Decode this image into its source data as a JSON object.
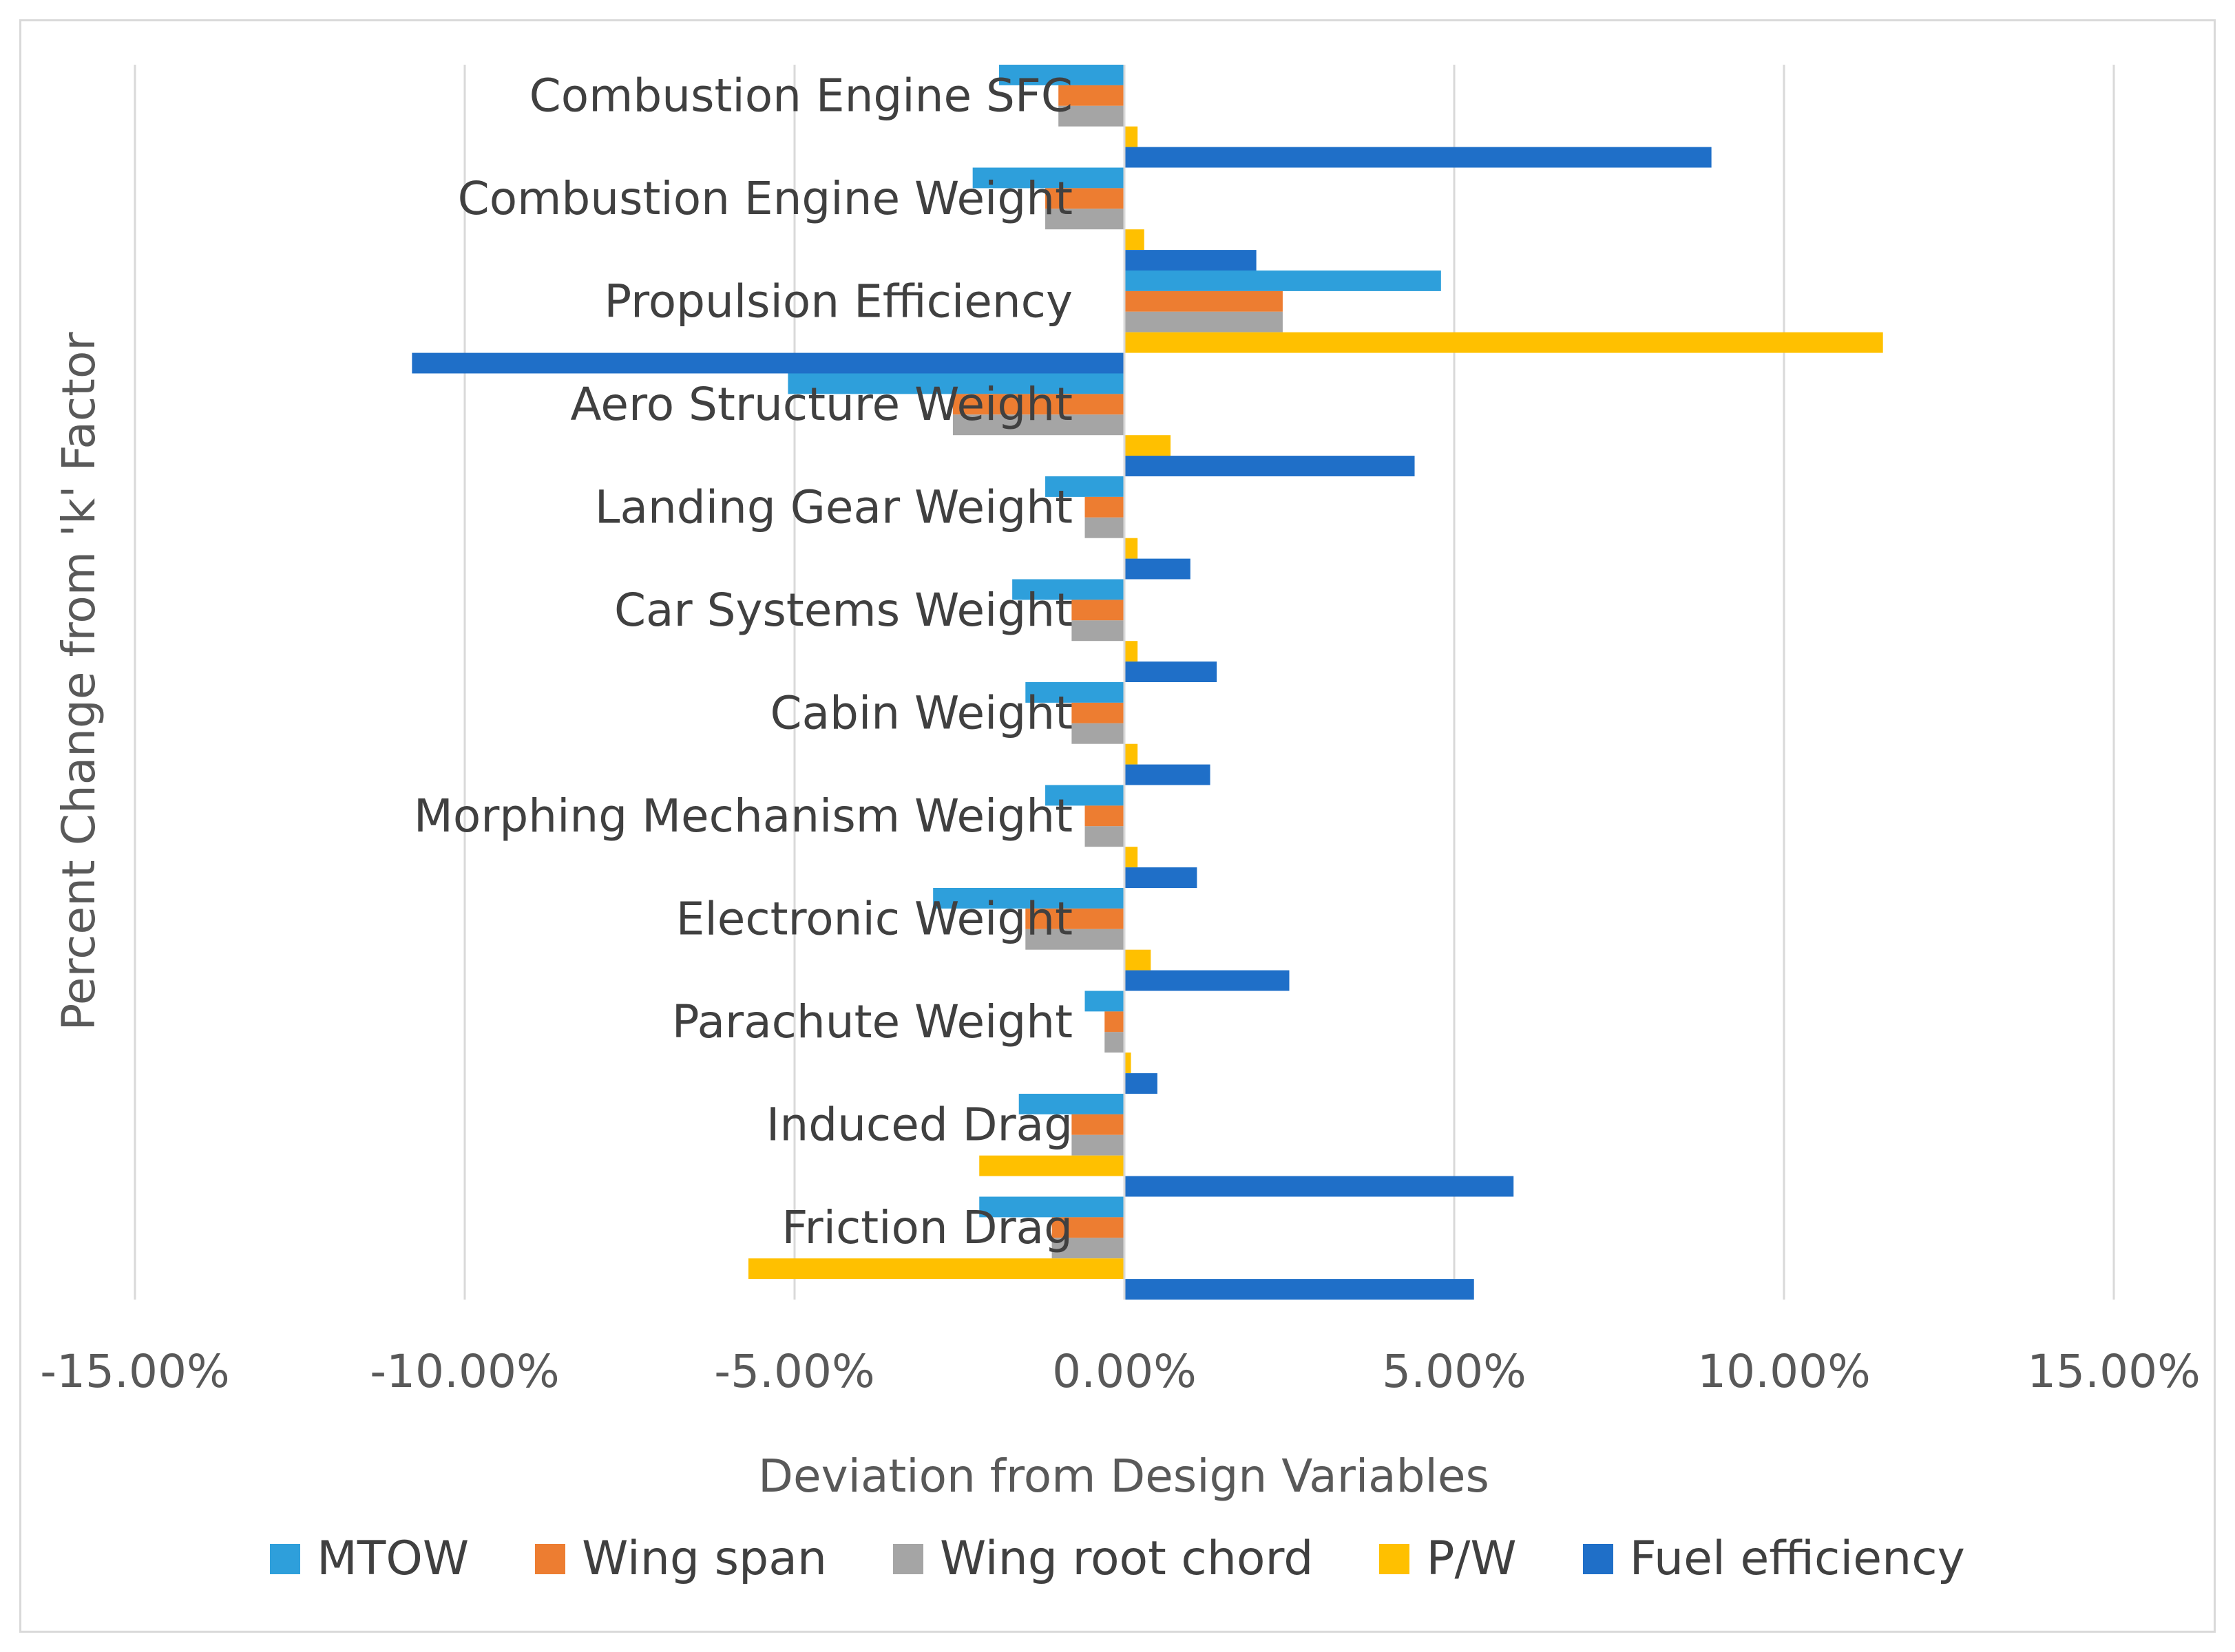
{
  "chart_data": {
    "type": "bar",
    "orientation": "horizontal",
    "title": "",
    "xlabel": "Deviation from Design Variables",
    "ylabel": "Percent Change from 'k' Factor",
    "xlim": [
      -15,
      15
    ],
    "x_ticks": [
      -15,
      -10,
      -5,
      0,
      5,
      10,
      15
    ],
    "x_tick_labels": [
      "-15.00%",
      "-10.00%",
      "-5.00%",
      "0.00%",
      "5.00%",
      "10.00%",
      "15.00%"
    ],
    "grid": "vertical",
    "legend_position": "bottom",
    "categories": [
      "Combustion Engine SFC",
      "Combustion Engine Weight",
      "Propulsion Efficiency",
      "Aero Structure Weight",
      "Landing Gear Weight",
      "Car Systems Weight",
      "Cabin Weight",
      "Morphing Mechanism Weight",
      "Electronic Weight",
      "Parachute Weight",
      "Induced Drag",
      "Friction Drag"
    ],
    "series": [
      {
        "name": "MTOW",
        "color": "#2E9FDB",
        "values": [
          -1.9,
          -2.3,
          4.8,
          -5.1,
          -1.2,
          -1.7,
          -1.5,
          -1.2,
          -2.9,
          -0.6,
          -1.6,
          -2.2
        ]
      },
      {
        "name": "Wing span",
        "color": "#ED7D31",
        "values": [
          -1.0,
          -1.2,
          2.4,
          -2.6,
          -0.6,
          -0.8,
          -0.8,
          -0.6,
          -1.5,
          -0.3,
          -0.8,
          -1.1
        ]
      },
      {
        "name": "Wing root chord",
        "color": "#A5A5A5",
        "values": [
          -1.0,
          -1.2,
          2.4,
          -2.6,
          -0.6,
          -0.8,
          -0.8,
          -0.6,
          -1.5,
          -0.3,
          -0.8,
          -1.1
        ]
      },
      {
        "name": "P/W",
        "color": "#FFC000",
        "values": [
          0.2,
          0.3,
          11.5,
          0.7,
          0.2,
          0.2,
          0.2,
          0.2,
          0.4,
          0.1,
          -2.2,
          -5.7
        ]
      },
      {
        "name": "Fuel efficiency",
        "color": "#1F6FC8",
        "values": [
          8.9,
          2.0,
          -10.8,
          4.4,
          1.0,
          1.4,
          1.3,
          1.1,
          2.5,
          0.5,
          5.9,
          5.3
        ]
      }
    ]
  }
}
